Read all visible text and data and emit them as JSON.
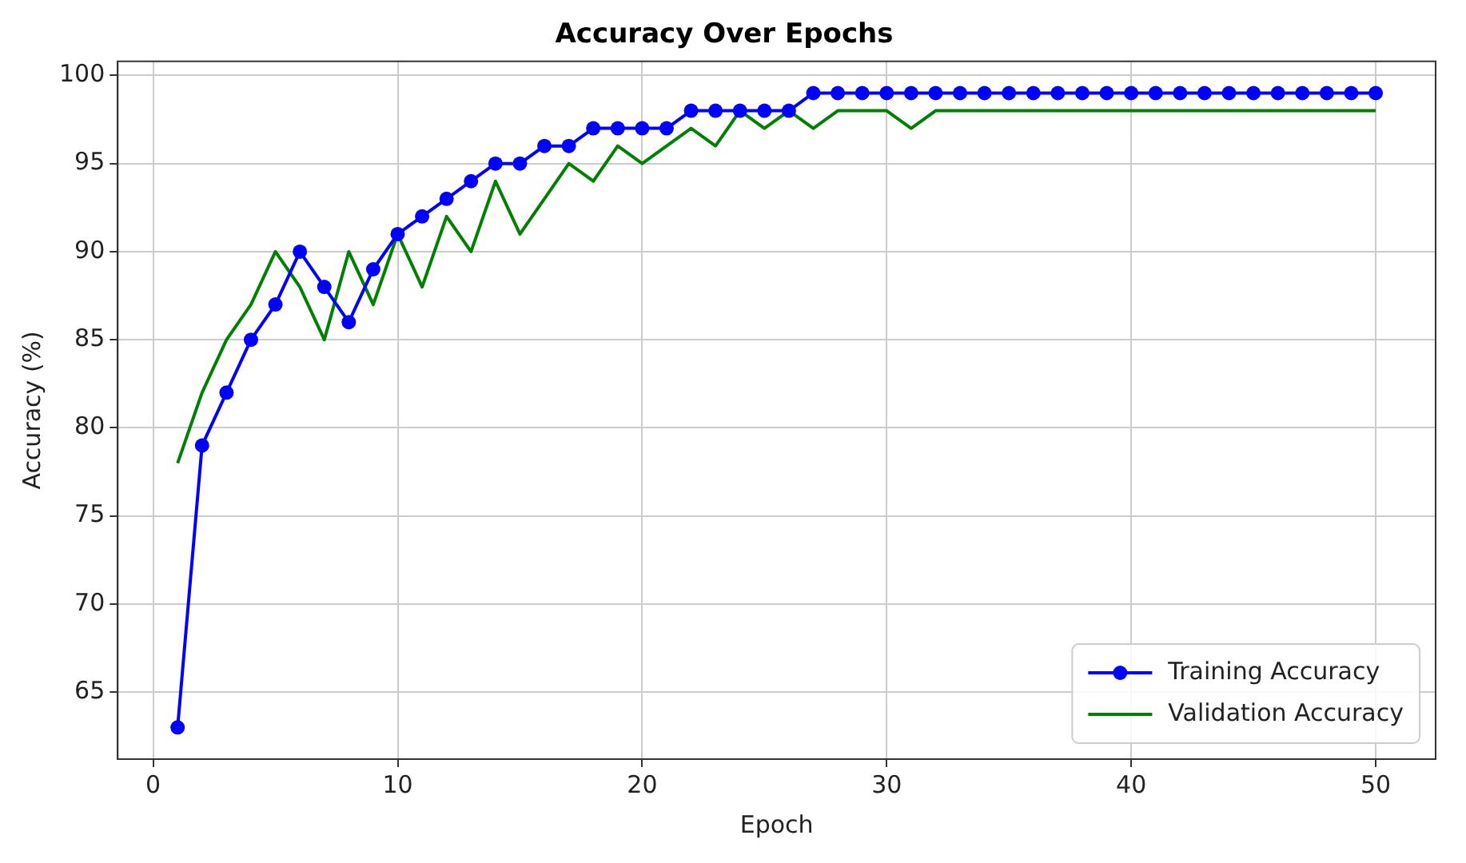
{
  "chart_data": {
    "type": "line",
    "title": "Accuracy Over Epochs",
    "xlabel": "Epoch",
    "ylabel": "Accuracy (%)",
    "x": [
      1,
      2,
      3,
      4,
      5,
      6,
      7,
      8,
      9,
      10,
      11,
      12,
      13,
      14,
      15,
      16,
      17,
      18,
      19,
      20,
      21,
      22,
      23,
      24,
      25,
      26,
      27,
      28,
      29,
      30,
      31,
      32,
      33,
      34,
      35,
      36,
      37,
      38,
      39,
      40,
      41,
      42,
      43,
      44,
      45,
      46,
      47,
      48,
      49,
      50
    ],
    "series": [
      {
        "name": "Training Accuracy",
        "color": "#0000ff",
        "marker": "circle",
        "values": [
          63,
          79,
          82,
          85,
          87,
          90,
          88,
          86,
          89,
          91,
          92,
          93,
          94,
          95,
          95,
          96,
          96,
          97,
          97,
          97,
          97,
          98,
          98,
          98,
          98,
          98,
          99,
          99,
          99,
          99,
          99,
          99,
          99,
          99,
          99,
          99,
          99,
          99,
          99,
          99,
          99,
          99,
          99,
          99,
          99,
          99,
          99,
          99,
          99,
          99
        ]
      },
      {
        "name": "Validation Accuracy",
        "color": "#008000",
        "marker": "none",
        "values": [
          78,
          82,
          85,
          87,
          90,
          88,
          85,
          90,
          87,
          91,
          88,
          92,
          90,
          94,
          91,
          93,
          95,
          94,
          96,
          95,
          96,
          97,
          96,
          98,
          97,
          98,
          97,
          98,
          98,
          98,
          97,
          98,
          98,
          98,
          98,
          98,
          98,
          98,
          98,
          98,
          98,
          98,
          98,
          98,
          98,
          98,
          98,
          98,
          98,
          98
        ]
      }
    ],
    "xlim": [
      -1.45,
      52.45
    ],
    "xticks": [
      0,
      10,
      20,
      30,
      40,
      50
    ],
    "ylim": [
      61.2,
      100.8
    ],
    "yticks": [
      65,
      70,
      75,
      80,
      85,
      90,
      95,
      100
    ],
    "grid": true,
    "legend": "bottom right",
    "line_style": "solid"
  }
}
